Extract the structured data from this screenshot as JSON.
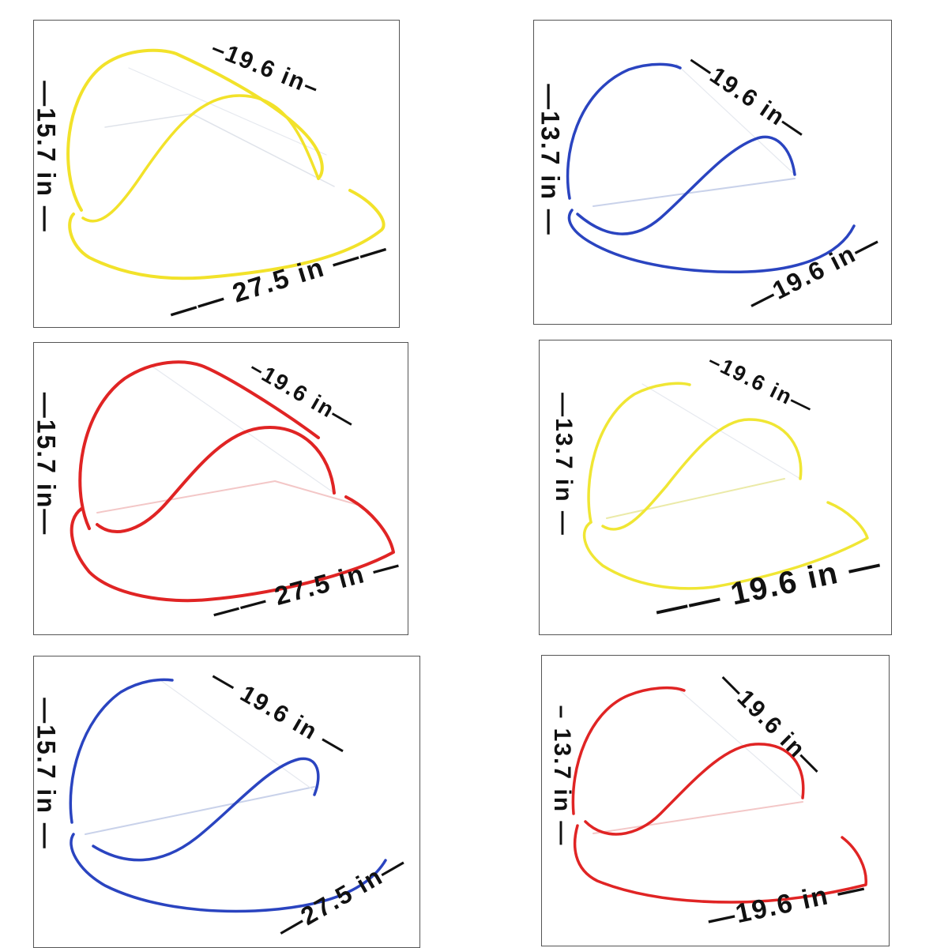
{
  "panels": [
    {
      "id": "p1",
      "rim_color": "#f2e22a",
      "height_label": "—15.7 in —",
      "depth_label": "–19.6 in–",
      "width_label": "—— 27.5 in ——"
    },
    {
      "id": "p2",
      "rim_color": "#2a44c0",
      "height_label": "—13.7 in —",
      "depth_label": "—19.6 in—",
      "width_label": "—19.6 in—"
    },
    {
      "id": "p3",
      "rim_color": "#e02424",
      "height_label": "—15.7 in—",
      "depth_label": "–19.6 in—",
      "width_label": "—— 27.5 in —"
    },
    {
      "id": "p4",
      "rim_color": "#f0e634",
      "height_label": "—13.7 in —",
      "depth_label": "–19.6 in—",
      "width_label": "—— 19.6 in —"
    },
    {
      "id": "p5",
      "rim_color": "#2a44c0",
      "height_label": "—15.7 in —",
      "depth_label": "— 19.6 in —",
      "width_label": "—27.5 in—"
    },
    {
      "id": "p6",
      "rim_color": "#e02424",
      "height_label": "– 13.7 in —",
      "depth_label": "—19.6 in—",
      "width_label": "—19.6 in —"
    }
  ]
}
